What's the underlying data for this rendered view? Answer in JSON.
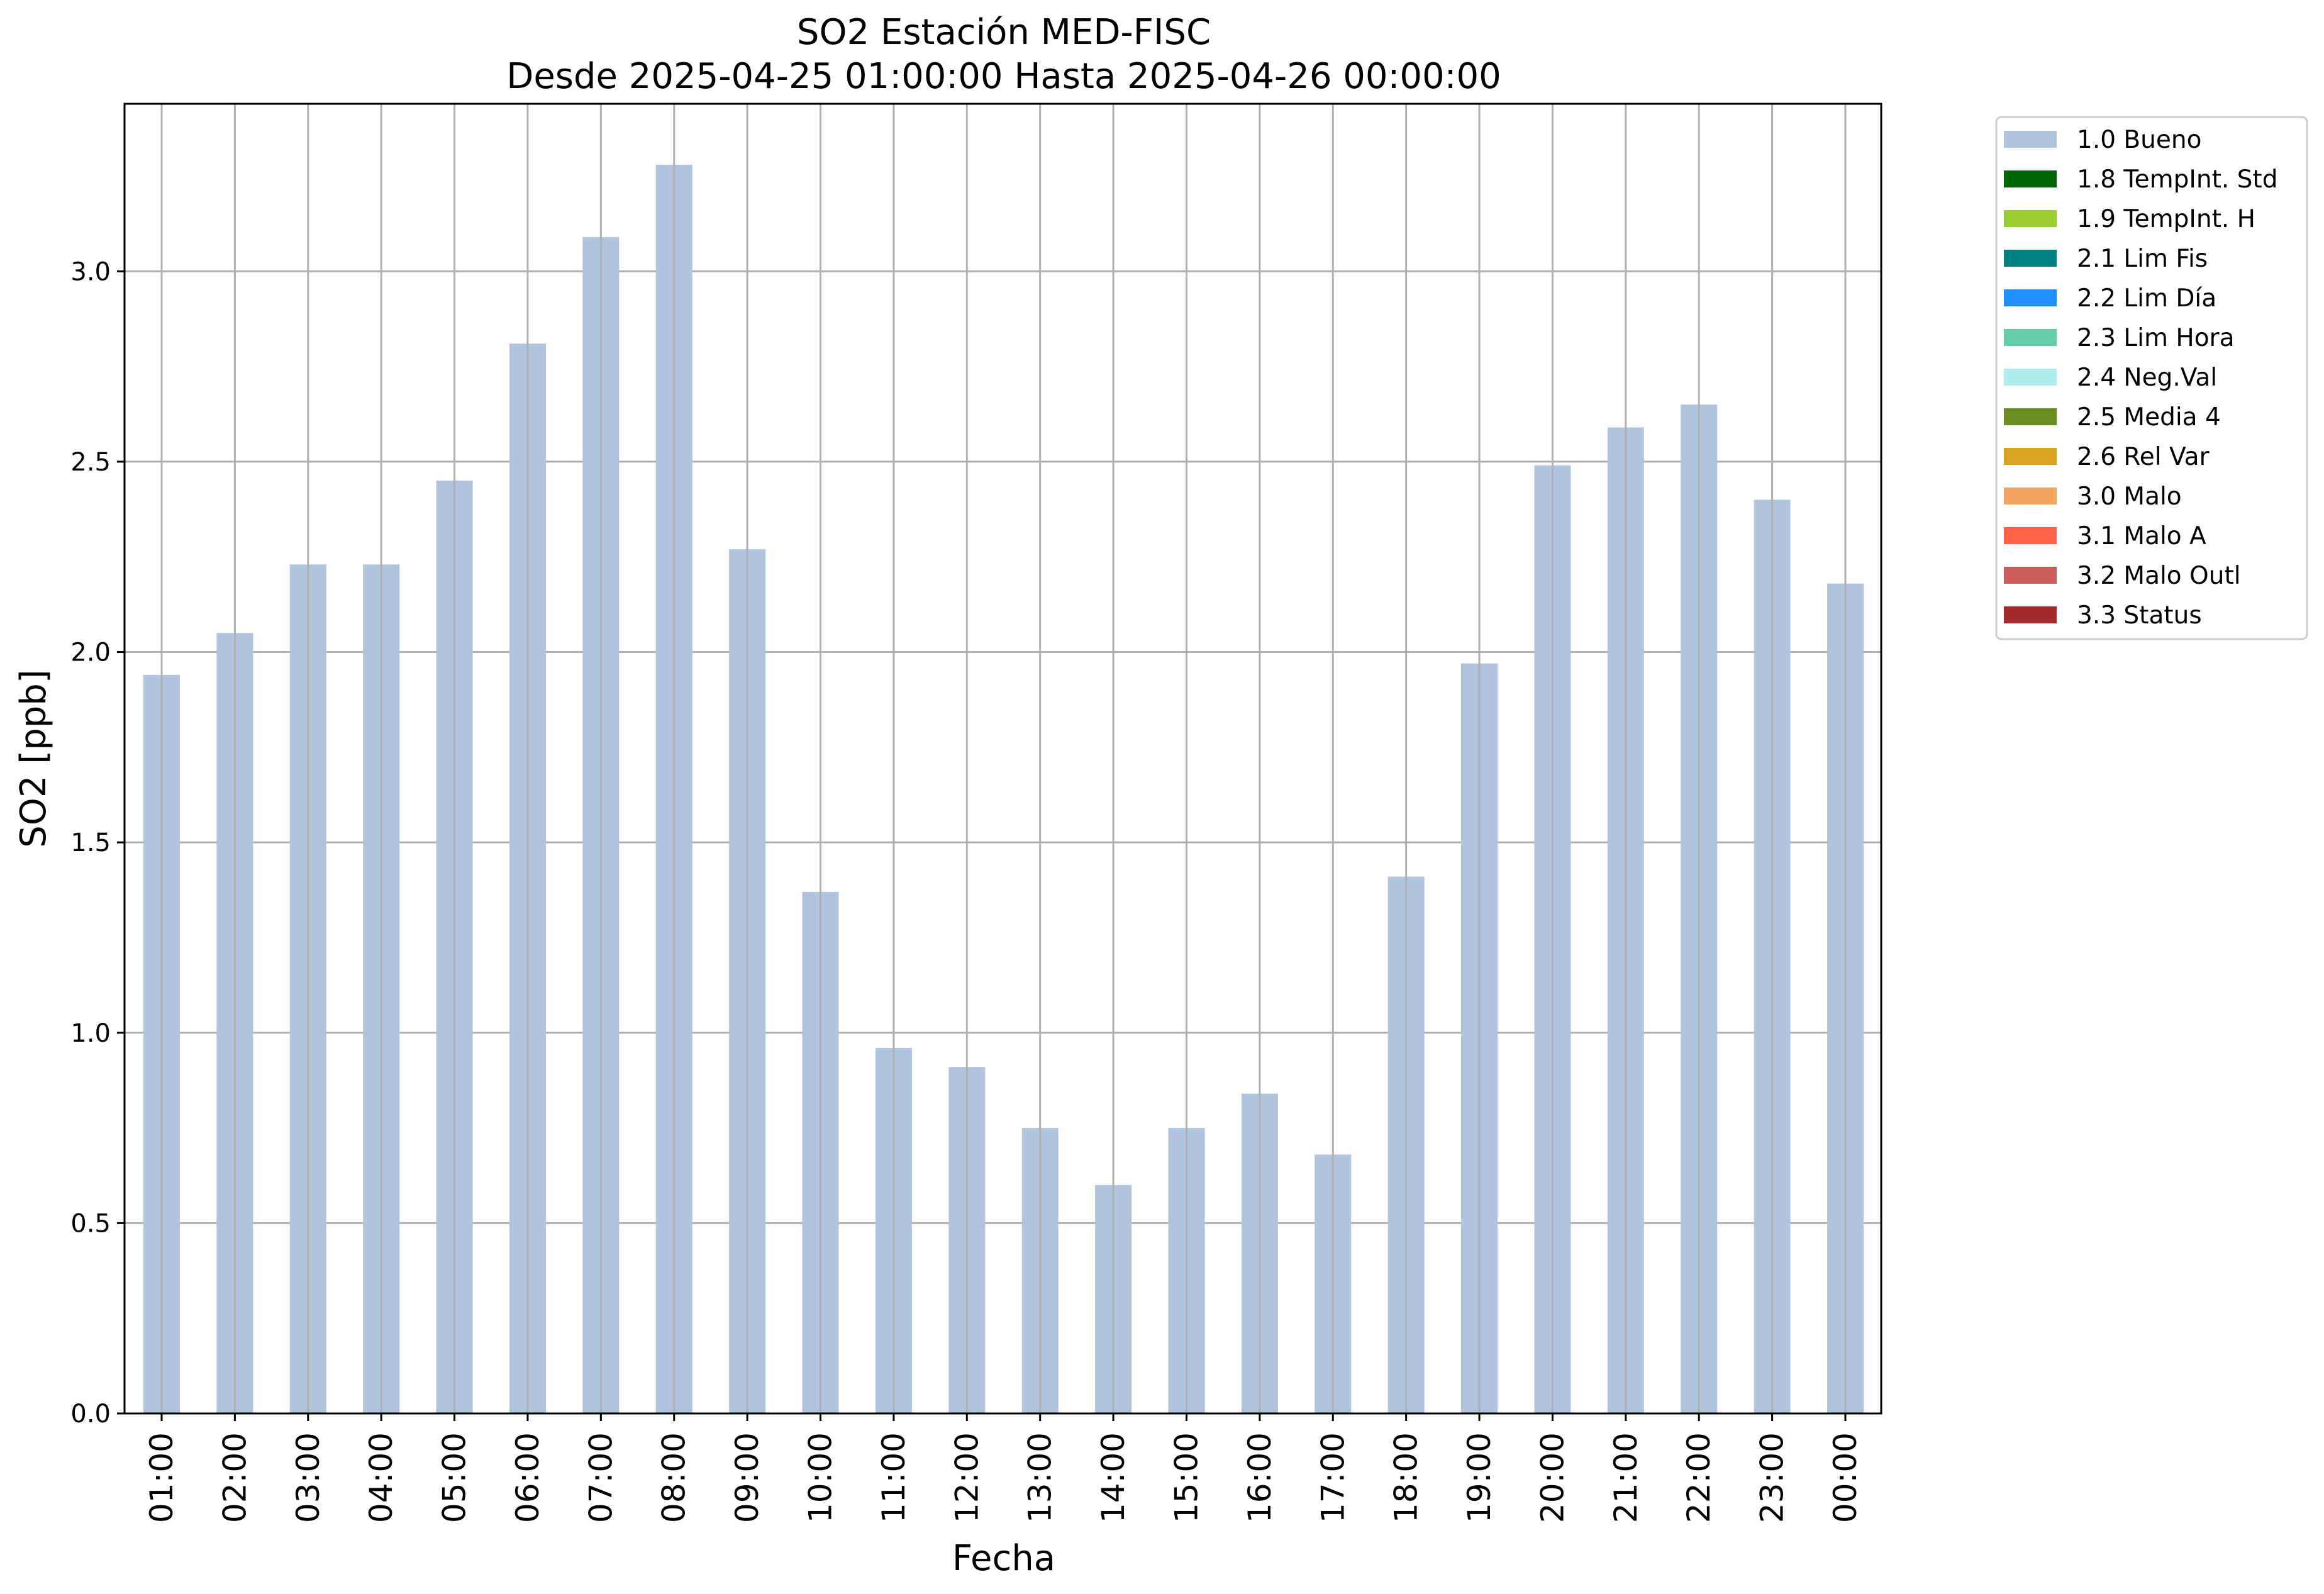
{
  "chart_data": {
    "type": "bar",
    "title": "SO2 Estación MED-FISC",
    "subtitle": "Desde 2025-04-25 01:00:00 Hasta 2025-04-26 00:00:00",
    "xlabel": "Fecha",
    "ylabel": "SO2 [ppb]",
    "ylim": [
      0,
      3.44
    ],
    "yticks": [
      "0.0",
      "0.5",
      "1.0",
      "1.5",
      "2.0",
      "2.5",
      "3.0"
    ],
    "grid": true,
    "legend_position": "outside-top-right",
    "categories": [
      "01:00",
      "02:00",
      "03:00",
      "04:00",
      "05:00",
      "06:00",
      "07:00",
      "08:00",
      "09:00",
      "10:00",
      "11:00",
      "12:00",
      "13:00",
      "14:00",
      "15:00",
      "16:00",
      "17:00",
      "18:00",
      "19:00",
      "20:00",
      "21:00",
      "22:00",
      "23:00",
      "00:00"
    ],
    "series": [
      {
        "name": "1.0 Bueno",
        "color": "#b0c4de",
        "values": [
          1.94,
          2.05,
          2.23,
          2.23,
          2.45,
          2.81,
          3.09,
          3.28,
          2.27,
          1.37,
          0.96,
          0.91,
          0.75,
          0.6,
          0.75,
          0.84,
          0.68,
          1.41,
          1.97,
          2.49,
          2.59,
          2.65,
          2.4,
          2.18
        ]
      }
    ],
    "legend": [
      {
        "label": "1.0 Bueno",
        "color": "#b0c4de"
      },
      {
        "label": "1.8 TempInt. Std",
        "color": "#006400"
      },
      {
        "label": "1.9 TempInt. H",
        "color": "#9acd32"
      },
      {
        "label": "2.1 Lim Fis",
        "color": "#008080"
      },
      {
        "label": "2.2 Lim Día",
        "color": "#1e90ff"
      },
      {
        "label": "2.3 Lim Hora",
        "color": "#66cdaa"
      },
      {
        "label": "2.4 Neg.Val",
        "color": "#afeeee"
      },
      {
        "label": "2.5 Media 4",
        "color": "#6b8e23"
      },
      {
        "label": "2.6 Rel Var",
        "color": "#daa520"
      },
      {
        "label": "3.0 Malo",
        "color": "#f4a460"
      },
      {
        "label": "3.1 Malo A",
        "color": "#ff6347"
      },
      {
        "label": "3.2 Malo Outl",
        "color": "#cd5c5c"
      },
      {
        "label": "3.3 Status",
        "color": "#a52a2a"
      }
    ]
  }
}
